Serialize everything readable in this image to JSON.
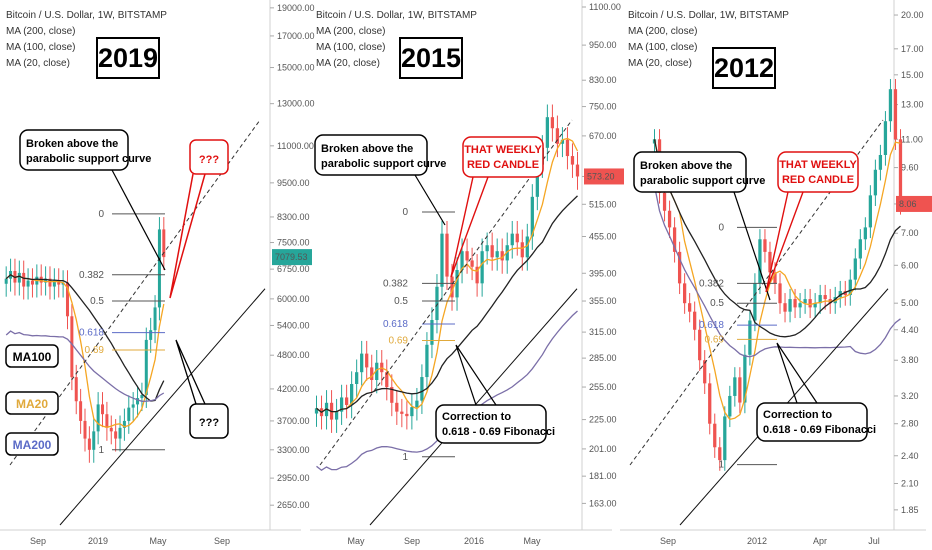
{
  "chart_data": [
    {
      "type": "candlestick",
      "title": "Bitcoin / U.S. Dollar, 1W, BITSTAMP",
      "legend": [
        "MA (200, close)",
        "MA (100, close)",
        "MA (20, close)"
      ],
      "year_label": "2019",
      "scale": "log",
      "ylim": [
        2450,
        19600
      ],
      "y_ticks": [
        "19000.00",
        "17000.00",
        "15000.00",
        "13000.00",
        "11000.00",
        "9500.00",
        "8300.00",
        "7500.00",
        "6750.00",
        "6000.00",
        "5400.00",
        "4800.00",
        "4200.00",
        "3700.00",
        "3300.00",
        "2950.00",
        "2650.00"
      ],
      "x_ticks": [
        "Sep",
        "2019",
        "May",
        "Sep"
      ],
      "last_price": "7079.53",
      "fib_levels": [
        {
          "label": "0",
          "price": 8400
        },
        {
          "label": "0.382",
          "price": 6600
        },
        {
          "label": "0.5",
          "price": 5950
        },
        {
          "label": "0.618",
          "price": 5250
        },
        {
          "label": "0.69",
          "price": 4900
        },
        {
          "label": "1",
          "price": 3300
        }
      ],
      "annotations": [
        "Broken above the parabolic support curve",
        "???",
        "???"
      ],
      "ma_labels": [
        "MA100",
        "MA20",
        "MA200"
      ],
      "closes": [
        6500,
        6700,
        6400,
        6650,
        6300,
        6450,
        6350,
        6550,
        6400,
        6500,
        6300,
        6450,
        6350,
        6400,
        5600,
        4400,
        4000,
        3700,
        3450,
        3300,
        3550,
        3950,
        3800,
        3600,
        3550,
        3450,
        3600,
        3700,
        3900,
        3950,
        4050,
        4100,
        5100,
        5300,
        5800,
        7900,
        7079.53
      ]
    },
    {
      "type": "candlestick",
      "title": "Bitcoin / U.S. Dollar, 1W, BITSTAMP",
      "legend": [
        "MA (200, close)",
        "MA (100, close)",
        "MA (20, close)"
      ],
      "year_label": "2015",
      "scale": "log",
      "ylim": [
        150,
        1130
      ],
      "y_ticks": [
        "1100.00",
        "950.00",
        "830.00",
        "750.00",
        "670.00",
        "573.20",
        "515.00",
        "455.00",
        "395.00",
        "355.00",
        "315.00",
        "285.00",
        "255.00",
        "225.00",
        "201.00",
        "181.00",
        "163.00"
      ],
      "x_ticks": [
        "May",
        "Sep",
        "2016",
        "May"
      ],
      "last_price": "573.20",
      "fib_levels": [
        {
          "label": "0",
          "price": 500
        },
        {
          "label": "0.382",
          "price": 380
        },
        {
          "label": "0.5",
          "price": 355
        },
        {
          "label": "0.618",
          "price": 325
        },
        {
          "label": "0.69",
          "price": 305
        },
        {
          "label": "1",
          "price": 195
        }
      ],
      "annotations": [
        "Broken above the parabolic support curve",
        "THAT WEEKLY RED CANDLE",
        "Correction to 0.618 - 0.69 Fibonacci"
      ],
      "closes": [
        235,
        228,
        240,
        225,
        232,
        245,
        238,
        258,
        270,
        290,
        275,
        262,
        280,
        270,
        255,
        240,
        232,
        230,
        228,
        236,
        242,
        265,
        300,
        330,
        375,
        460,
        390,
        360,
        400,
        430,
        415,
        405,
        380,
        430,
        440,
        420,
        430,
        415,
        440,
        460,
        445,
        420,
        455,
        530,
        600,
        640,
        720,
        690,
        650,
        660,
        620,
        600,
        573.2
      ]
    },
    {
      "type": "candlestick",
      "title": "Bitcoin / U.S. Dollar, 1W, BITSTAMP",
      "legend": [
        "MA (200, close)",
        "MA (100, close)",
        "MA (20, close)"
      ],
      "year_label": "2012",
      "scale": "log",
      "ylim": [
        1.72,
        21.5
      ],
      "y_ticks": [
        "20.00",
        "17.00",
        "15.00",
        "13.00",
        "11.00",
        "9.60",
        "8.06",
        "7.00",
        "6.00",
        "5.00",
        "4.40",
        "3.80",
        "3.20",
        "2.80",
        "2.40",
        "2.10",
        "1.85"
      ],
      "x_ticks": [
        "Sep",
        "2012",
        "Apr",
        "Jul"
      ],
      "last_price": "8.06",
      "fib_levels": [
        {
          "label": "0",
          "price": 7.2
        },
        {
          "label": "0.382",
          "price": 5.5
        },
        {
          "label": "0.5",
          "price": 5.0
        },
        {
          "label": "0.618",
          "price": 4.5
        },
        {
          "label": "0.69",
          "price": 4.2
        },
        {
          "label": "1",
          "price": 2.3
        }
      ],
      "annotations": [
        "Broken above the parabolic support curve",
        "THAT WEEKLY RED CANDLE",
        "Correction to 0.618 - 0.69 Fibonacci"
      ],
      "closes": [
        11,
        8.5,
        7.8,
        7.2,
        6.4,
        5.5,
        5,
        4.8,
        4.4,
        3.8,
        3.4,
        2.8,
        2.5,
        2.35,
        2.9,
        3.2,
        3.5,
        3.1,
        3.9,
        4.6,
        5.5,
        6.8,
        6.4,
        5.8,
        5.5,
        5.0,
        4.8,
        5.1,
        4.9,
        5.0,
        5.1,
        4.9,
        5.0,
        5.2,
        5.1,
        5.0,
        5.15,
        5.3,
        5.2,
        5.6,
        6.2,
        6.8,
        7.2,
        8.4,
        9.5,
        10.2,
        12,
        14,
        11,
        8.06
      ]
    }
  ]
}
